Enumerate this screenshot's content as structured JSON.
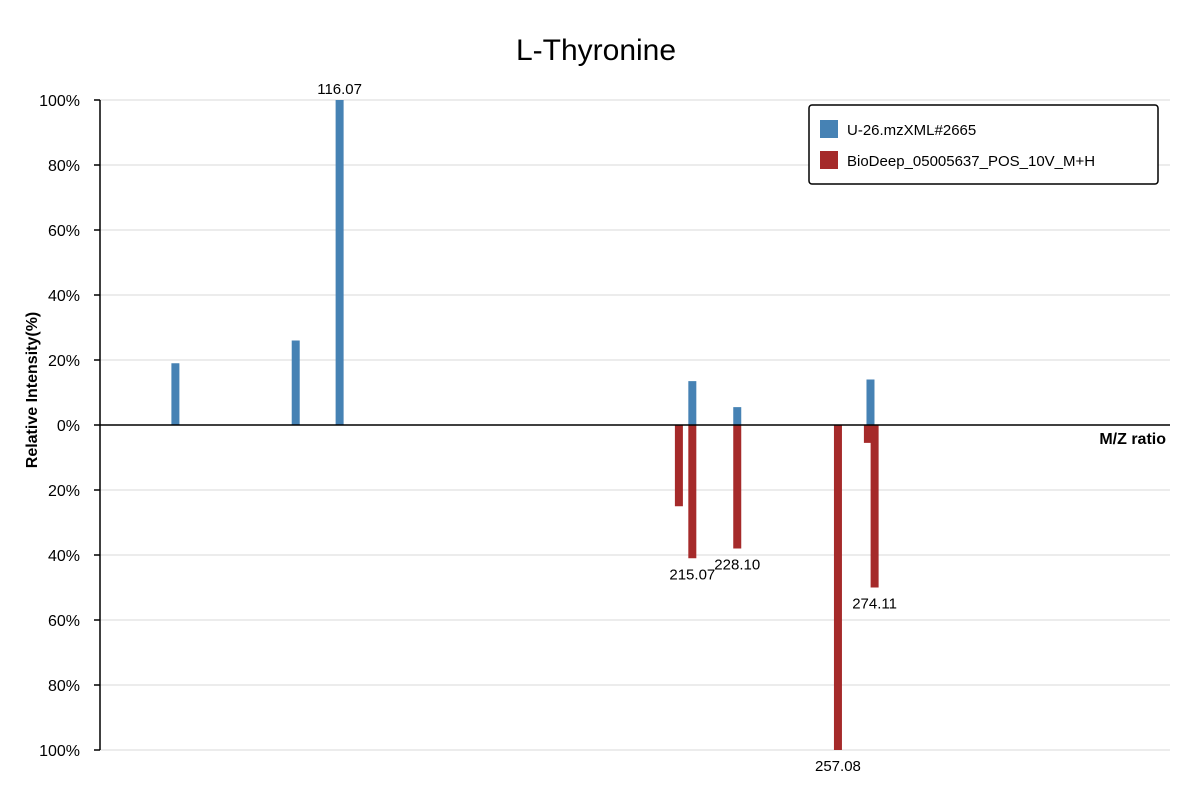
{
  "chart_data": {
    "type": "bar",
    "title": "L-Thyronine",
    "xlabel": "M/Z ratio",
    "ylabel": "Relative Intensity(%)",
    "xlim": [
      92.8,
      300
    ],
    "ylim": [
      -100,
      100
    ],
    "y_ticks": [
      {
        "value": 100,
        "label": "100%"
      },
      {
        "value": 80,
        "label": "80%"
      },
      {
        "value": 60,
        "label": "60%"
      },
      {
        "value": 40,
        "label": "40%"
      },
      {
        "value": 20,
        "label": "20%"
      },
      {
        "value": 0,
        "label": "0%"
      },
      {
        "value": -20,
        "label": "20%"
      },
      {
        "value": -40,
        "label": "40%"
      },
      {
        "value": -60,
        "label": "60%"
      },
      {
        "value": -80,
        "label": "80%"
      },
      {
        "value": -100,
        "label": "100%"
      }
    ],
    "grid": true,
    "legend_position": "top-right",
    "series": [
      {
        "name": "U-26.mzXML#2665",
        "color": "#4682b4",
        "direction": "up",
        "peaks": [
          {
            "mz": 107.4,
            "intensity": 19
          },
          {
            "mz": 108.0,
            "intensity": 0,
            "label": ""
          },
          {
            "mz": 130.7,
            "intensity": 26
          },
          {
            "mz": 139.2,
            "intensity": 100,
            "label": "116.07"
          },
          {
            "mz": 207.5,
            "intensity": 13.5
          },
          {
            "mz": 216.2,
            "intensity": 5.5
          },
          {
            "mz": 242.0,
            "intensity": 14
          }
        ]
      },
      {
        "name": "BioDeep_05005637_POS_10V_M+H",
        "color": "#a52a2a",
        "direction": "down",
        "peaks": [
          {
            "mz": 204.9,
            "intensity": 25
          },
          {
            "mz": 207.5,
            "intensity": 41,
            "label": "215.07"
          },
          {
            "mz": 216.2,
            "intensity": 38,
            "label": "228.10"
          },
          {
            "mz": 235.7,
            "intensity": 100,
            "label": "257.08"
          },
          {
            "mz": 241.5,
            "intensity": 5.5
          },
          {
            "mz": 242.8,
            "intensity": 50,
            "label": "274.11"
          }
        ]
      }
    ]
  }
}
